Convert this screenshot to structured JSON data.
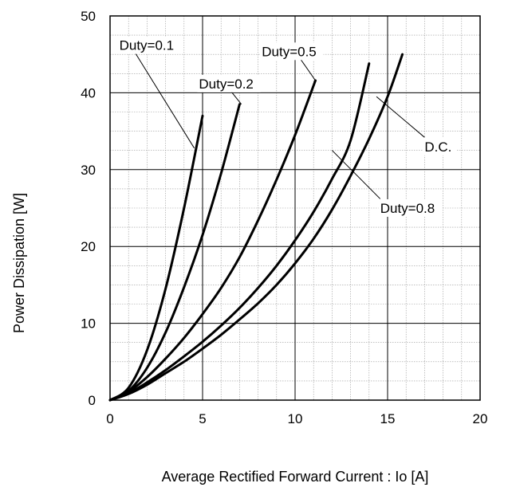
{
  "chart_data": {
    "type": "line",
    "title": "",
    "xlabel": "Average Rectified Forward Current : Io [A]",
    "ylabel": "Power Dissipation [W]",
    "xlim": [
      0,
      20
    ],
    "ylim": [
      0,
      50
    ],
    "x_ticks": [
      "0",
      "5",
      "10",
      "15",
      "20"
    ],
    "y_ticks": [
      "0",
      "10",
      "20",
      "30",
      "40",
      "50"
    ],
    "grid": true,
    "series": [
      {
        "name": "Duty=0.1",
        "x": [
          0,
          1,
          2,
          3,
          4,
          5
        ],
        "y": [
          0,
          1.6,
          6.5,
          14.5,
          25,
          37
        ]
      },
      {
        "name": "Duty=0.2",
        "x": [
          0,
          1,
          2,
          3,
          4,
          5,
          6,
          7
        ],
        "y": [
          0,
          1.2,
          4.2,
          8.8,
          14.7,
          21.5,
          29.5,
          38.5
        ]
      },
      {
        "name": "Duty=0.5",
        "x": [
          0,
          1,
          2,
          3,
          4,
          5,
          6,
          7,
          8,
          9,
          10,
          11.1
        ],
        "y": [
          0,
          1.1,
          3.0,
          5.4,
          8.1,
          11.2,
          14.6,
          18.6,
          23.4,
          28.7,
          34.5,
          41.6
        ]
      },
      {
        "name": "Duty=0.8",
        "x": [
          0,
          1,
          2,
          3,
          4,
          5,
          6,
          7,
          8,
          9,
          10,
          11,
          12,
          13,
          14
        ],
        "y": [
          0,
          0.9,
          2.3,
          3.9,
          5.7,
          7.6,
          9.7,
          12.0,
          14.6,
          17.5,
          20.8,
          24.5,
          28.8,
          33.8,
          43.8
        ]
      },
      {
        "name": "D.C.",
        "x": [
          0,
          1,
          2,
          3,
          4,
          5,
          6,
          7,
          8,
          9,
          10,
          11,
          12,
          13,
          14,
          15,
          15.8
        ],
        "y": [
          0,
          0.8,
          2.0,
          3.5,
          5.0,
          6.7,
          8.5,
          10.5,
          12.6,
          15.0,
          17.8,
          21.0,
          24.8,
          29.2,
          34.0,
          39.5,
          45.0
        ]
      }
    ],
    "annotations": [
      {
        "text": "Duty=0.1",
        "series": "Duty=0.1"
      },
      {
        "text": "Duty=0.2",
        "series": "Duty=0.2"
      },
      {
        "text": "Duty=0.5",
        "series": "Duty=0.5"
      },
      {
        "text": "Duty=0.8",
        "series": "Duty=0.8"
      },
      {
        "text": "D.C.",
        "series": "D.C."
      }
    ]
  }
}
